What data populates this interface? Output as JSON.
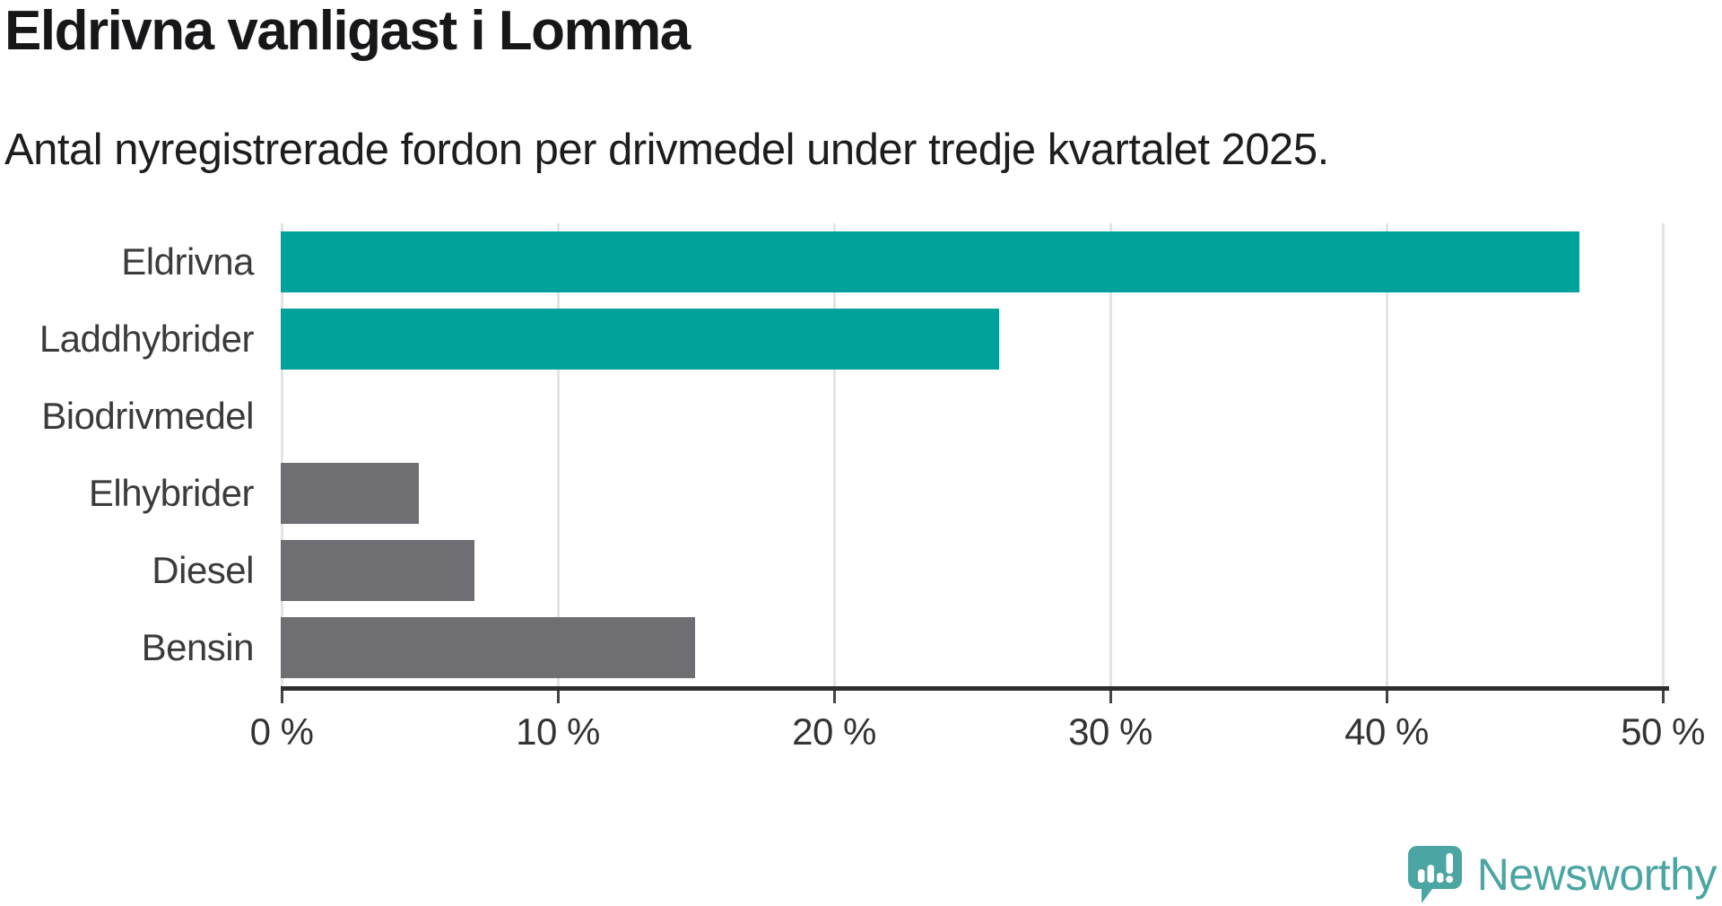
{
  "header": {
    "title": "Eldrivna vanligast i Lomma",
    "subtitle": "Antal nyregistrerade fordon per drivmedel under tredje kvartalet 2025."
  },
  "chart_data": {
    "type": "bar",
    "orientation": "horizontal",
    "title": "Eldrivna vanligast i Lomma",
    "subtitle": "Antal nyregistrerade fordon per drivmedel under tredje kvartalet 2025.",
    "categories": [
      "Eldrivna",
      "Laddhybrider",
      "Biodrivmedel",
      "Elhybrider",
      "Diesel",
      "Bensin"
    ],
    "values": [
      47,
      26,
      0,
      5,
      7,
      15
    ],
    "unit": "%",
    "xlim": [
      0,
      50
    ],
    "x_ticks": [
      {
        "value": 0,
        "label": "0 %"
      },
      {
        "value": 10,
        "label": "10 %"
      },
      {
        "value": 20,
        "label": "20 %"
      },
      {
        "value": 30,
        "label": "30 %"
      },
      {
        "value": 40,
        "label": "40 %"
      },
      {
        "value": 50,
        "label": "50 %"
      }
    ],
    "grid": true,
    "legend": false,
    "bar_colors": [
      "#00a29b",
      "#00a29b",
      "#6e6e73",
      "#6e6e73",
      "#6e6e73",
      "#6e6e73"
    ]
  },
  "colors": {
    "highlight": "#00a29b",
    "neutral": "#6e6e73",
    "gridline": "#e4e4e4",
    "axis": "#2e2e2e",
    "logo": "#4ba6a3"
  },
  "branding": {
    "logo_text": "Newsworthy",
    "logo_icon": "newsworthy-speech-bubble-bar-chart-icon"
  }
}
